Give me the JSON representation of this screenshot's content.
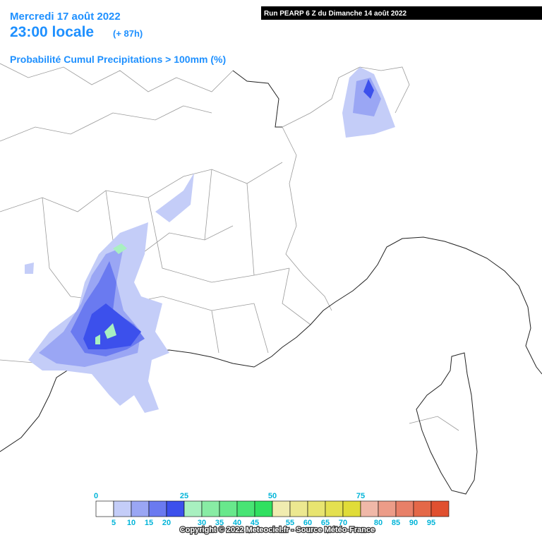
{
  "header": {
    "date": "Mercredi 17 août 2022",
    "time": "23:00 locale",
    "lead": "(+ 87h)",
    "product": "Probabilité Cumul Precipitations > 100mm (%)",
    "run": "Run PEARP 6 Z du Dimanche 14 août 2022"
  },
  "legend": {
    "colors": [
      "#ffffff",
      "#c4cdf8",
      "#9aa6f4",
      "#6a7af0",
      "#3c50ec",
      "#a8f0c0",
      "#88eca4",
      "#68e88c",
      "#48e474",
      "#30e060",
      "#f0ecb0",
      "#ece890",
      "#e8e470",
      "#e4e050",
      "#e0dc38",
      "#f0b8a8",
      "#ec9c88",
      "#e88068",
      "#e46848",
      "#e05030"
    ],
    "top_labels": [
      0,
      25,
      50,
      75
    ],
    "bottom_labels": [
      5,
      10,
      15,
      20,
      30,
      35,
      40,
      45,
      55,
      60,
      65,
      70,
      80,
      85,
      90,
      95
    ]
  },
  "footer": {
    "copyright": "Copyright © 2022 Meteociel.fr - Source Météo-France"
  }
}
